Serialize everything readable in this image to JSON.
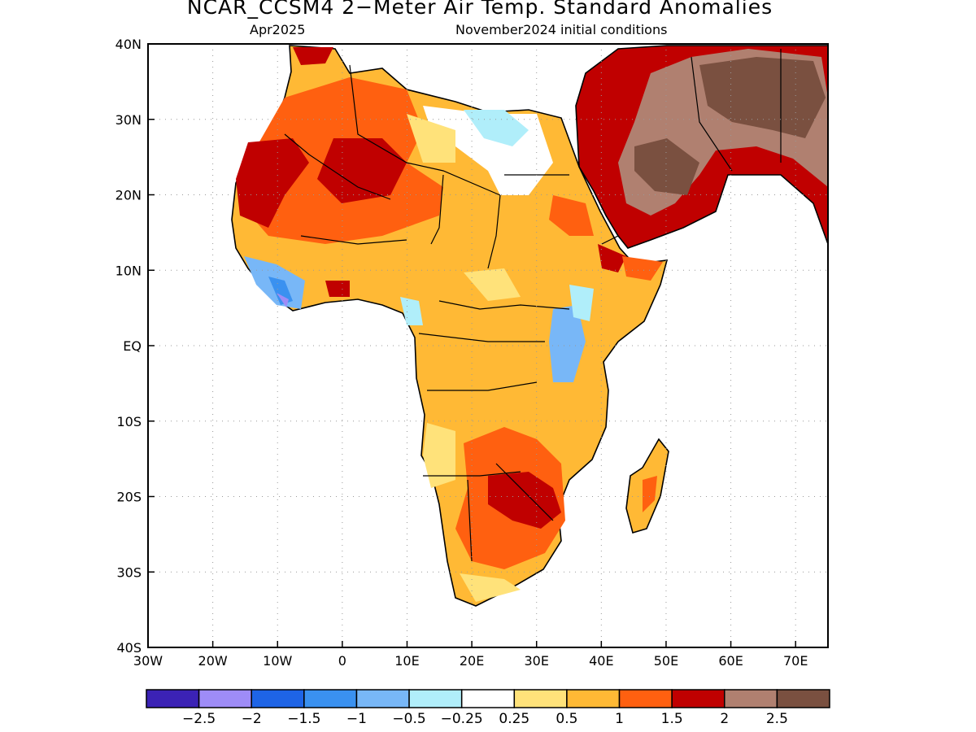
{
  "title": "NCAR_CCSM4 2−Meter Air Temp. Standard Anomalies",
  "valid_month": "Apr2025",
  "init_conditions": "November2024 initial conditions",
  "axes": {
    "lon": {
      "min": -30,
      "max": 75,
      "ticks": [
        -30,
        -20,
        -10,
        0,
        10,
        20,
        30,
        40,
        50,
        60,
        70
      ],
      "labels": [
        "30W",
        "20W",
        "10W",
        "0",
        "10E",
        "20E",
        "30E",
        "40E",
        "50E",
        "60E",
        "70E"
      ]
    },
    "lat": {
      "min": -40,
      "max": 40,
      "ticks": [
        40,
        30,
        20,
        10,
        0,
        -10,
        -20,
        -30,
        -40
      ],
      "labels": [
        "40N",
        "30N",
        "20N",
        "10N",
        "EQ",
        "10S",
        "20S",
        "30S",
        "40S"
      ]
    },
    "grid": "dotted"
  },
  "colorbar": {
    "colors": [
      "#3b22b5",
      "#9e8cf7",
      "#1e64e6",
      "#3a91f0",
      "#78b7f7",
      "#b0eefa",
      "#ffffff",
      "#ffe27a",
      "#ffb935",
      "#ff6010",
      "#c00000",
      "#b08070",
      "#7a5040"
    ],
    "labels": [
      "−2.5",
      "−2",
      "−1.5",
      "−1",
      "−0.5",
      "−0.25",
      "0.25",
      "0.5",
      "1",
      "1.5",
      "2",
      "2.5"
    ]
  },
  "map_data": {
    "region": "Africa and Arabian Peninsula",
    "variable": "2-meter air temperature standard anomaly",
    "anomaly_areas": [
      {
        "name": "Sahara and Sahel",
        "level": "0.5 to 2"
      },
      {
        "name": "Northwest Africa",
        "level": "1.5 to 2"
      },
      {
        "name": "Arabian Peninsula",
        "level": "2 to above 2.5"
      },
      {
        "name": "Iran",
        "level": "above 2.5"
      },
      {
        "name": "Egypt / Libya border",
        "level": "-0.5 to 0.25"
      },
      {
        "name": "Guinea coast",
        "level": "-2.5 to -0.5"
      },
      {
        "name": "East African highlands",
        "level": "-1 to 0.25"
      },
      {
        "name": "Zambia / Zimbabwe / Botswana",
        "level": "1 to 2"
      },
      {
        "name": "Central and Southern Africa",
        "level": "0.5 to 1"
      },
      {
        "name": "Madagascar",
        "level": "0.5 to 1.5"
      }
    ]
  }
}
